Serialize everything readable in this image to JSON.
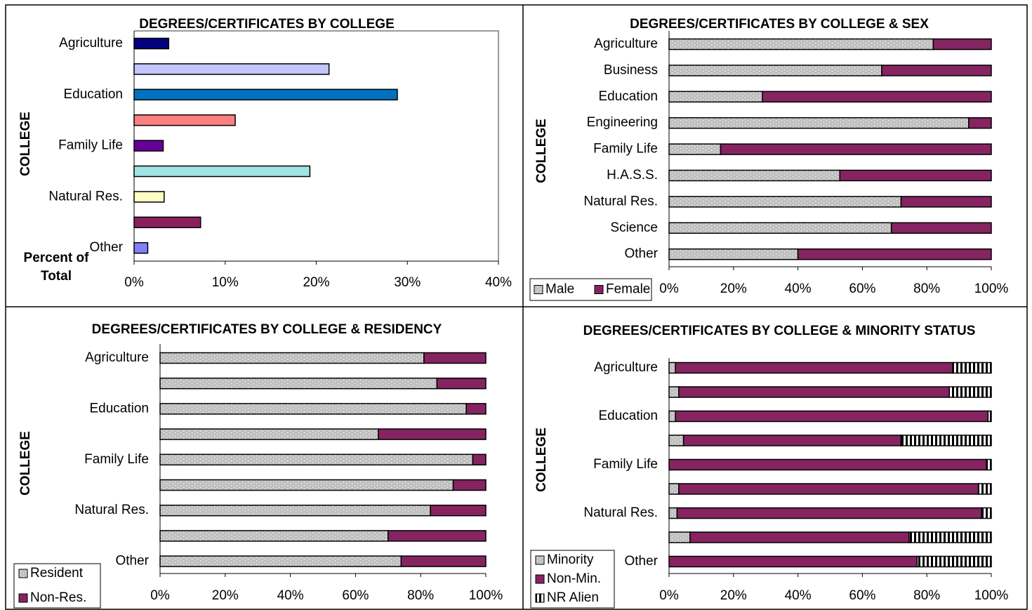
{
  "chart_data": [
    {
      "type": "bar",
      "horizontal": true,
      "title": "DEGREES/CERTIFICATES BY COLLEGE",
      "y_label": "COLLEGE",
      "x_label": "Percent of Total",
      "categories": [
        "Agriculture",
        null,
        "Education",
        null,
        "Family Life",
        null,
        "Natural Res.",
        null,
        "Other"
      ],
      "values": [
        3.8,
        21.4,
        28.9,
        11.1,
        3.2,
        19.3,
        3.3,
        7.3,
        1.5
      ],
      "colors": [
        "#000080",
        "#c4c4ff",
        "#0070c0",
        "#ff8080",
        "#660099",
        "#a0e4e4",
        "#ffffc4",
        "#8b1f5e",
        "#8080ff"
      ],
      "xlim": [
        0,
        40
      ],
      "xticks": [
        {
          "value": 0,
          "label": "0%"
        },
        {
          "value": 10,
          "label": "10%"
        },
        {
          "value": 20,
          "label": "20%"
        },
        {
          "value": 30,
          "label": "30%"
        },
        {
          "value": 40,
          "label": "40%"
        }
      ]
    },
    {
      "type": "stacked_bar",
      "horizontal": true,
      "title": "DEGREES/CERTIFICATES BY COLLEGE & SEX",
      "y_label": "COLLEGE",
      "categories": [
        "Agriculture",
        "Business",
        "Education",
        "Engineering",
        "Family Life",
        "H.A.S.S.",
        "Natural Res.",
        "Science",
        "Other"
      ],
      "series": [
        {
          "name": "Male",
          "color": "#c0c0c0",
          "pattern": "dots",
          "values": [
            82,
            66,
            29,
            93,
            16,
            53,
            72,
            69,
            40
          ]
        },
        {
          "name": "Female",
          "color": "#862462",
          "values": [
            18,
            34,
            71,
            7,
            84,
            47,
            28,
            31,
            60
          ]
        }
      ],
      "legend": "bottom-left",
      "legend_layout": "horizontal",
      "xlim": [
        0,
        100
      ],
      "xticks": [
        {
          "value": 0,
          "label": "0%"
        },
        {
          "value": 20,
          "label": "20%"
        },
        {
          "value": 40,
          "label": "40%"
        },
        {
          "value": 60,
          "label": "60%"
        },
        {
          "value": 80,
          "label": "80%"
        },
        {
          "value": 100,
          "label": "100%"
        }
      ]
    },
    {
      "type": "stacked_bar",
      "horizontal": true,
      "title": "DEGREES/CERTIFICATES BY COLLEGE & RESIDENCY",
      "y_label": "COLLEGE",
      "categories": [
        "Agriculture",
        null,
        "Education",
        null,
        "Family Life",
        null,
        "Natural Res.",
        null,
        "Other"
      ],
      "series": [
        {
          "name": "Resident",
          "color": "#c0c0c0",
          "pattern": "dots",
          "values": [
            81,
            85,
            94,
            67,
            96,
            90,
            83,
            70,
            74
          ]
        },
        {
          "name": "Non-Res.",
          "color": "#862462",
          "values": [
            19,
            15,
            6,
            33,
            4,
            10,
            17,
            30,
            26
          ]
        }
      ],
      "legend": "bottom-left",
      "legend_layout": "vertical",
      "xlim": [
        0,
        100
      ],
      "xticks": [
        {
          "value": 0,
          "label": "0%"
        },
        {
          "value": 20,
          "label": "20%"
        },
        {
          "value": 40,
          "label": "40%"
        },
        {
          "value": 60,
          "label": "60%"
        },
        {
          "value": 80,
          "label": "80%"
        },
        {
          "value": 100,
          "label": "100%"
        }
      ]
    },
    {
      "type": "stacked_bar",
      "horizontal": true,
      "title": "DEGREES/CERTIFICATES BY COLLEGE & MINORITY STATUS",
      "y_label": "COLLEGE",
      "categories": [
        "Agriculture",
        null,
        "Education",
        null,
        "Family Life",
        null,
        "Natural Res.",
        null,
        "Other"
      ],
      "series": [
        {
          "name": "Minority",
          "color": "#c0c0c0",
          "pattern": "dots",
          "values": [
            2,
            3,
            2,
            4.5,
            0,
            3,
            2.5,
            6.5,
            0
          ]
        },
        {
          "name": "Non-Min.",
          "color": "#862462",
          "values": [
            86,
            84,
            97,
            67.5,
            98.5,
            93,
            94.5,
            68,
            77
          ]
        },
        {
          "name": "NR Alien",
          "color": "#ffffff",
          "pattern": "stripes",
          "values": [
            12,
            13,
            1,
            28,
            1.5,
            4,
            3,
            25.5,
            23
          ]
        }
      ],
      "legend": "bottom-left",
      "legend_layout": "vertical",
      "xlim": [
        0,
        100
      ],
      "xticks": [
        {
          "value": 0,
          "label": "0%"
        },
        {
          "value": 20,
          "label": "20%"
        },
        {
          "value": 40,
          "label": "40%"
        },
        {
          "value": 60,
          "label": "60%"
        },
        {
          "value": 80,
          "label": "80%"
        },
        {
          "value": 100,
          "label": "100%"
        }
      ]
    }
  ]
}
